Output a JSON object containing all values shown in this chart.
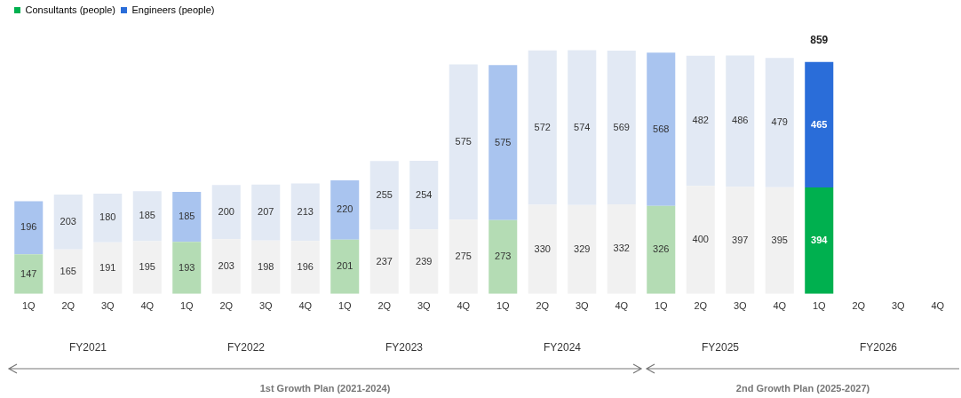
{
  "chart_data": {
    "type": "bar",
    "stacked": true,
    "data_labels": true,
    "legend": "top left",
    "grid": false,
    "categories": [
      "1Q",
      "2Q",
      "3Q",
      "4Q",
      "1Q",
      "2Q",
      "3Q",
      "4Q",
      "1Q",
      "2Q",
      "3Q",
      "4Q",
      "1Q",
      "2Q",
      "3Q",
      "4Q",
      "1Q",
      "2Q",
      "3Q",
      "4Q",
      "1Q",
      "2Q",
      "3Q",
      "4Q"
    ],
    "series": [
      {
        "name": "Consultants (people)",
        "color": "#00b04f",
        "values": [
          147,
          165,
          191,
          195,
          193,
          203,
          198,
          196,
          201,
          237,
          239,
          275,
          273,
          330,
          329,
          332,
          326,
          400,
          397,
          395,
          394,
          null,
          null,
          null
        ],
        "colors": [
          "#b4dcb4",
          "#f1f1f1",
          "#f1f1f1",
          "#f1f1f1",
          "#b4dcb4",
          "#f1f1f1",
          "#f1f1f1",
          "#f1f1f1",
          "#b4dcb4",
          "#f1f1f1",
          "#f1f1f1",
          "#f1f1f1",
          "#b4dcb4",
          "#f1f1f1",
          "#f1f1f1",
          "#f1f1f1",
          "#b4dcb4",
          "#f1f1f1",
          "#f1f1f1",
          "#f1f1f1",
          "#00b04f",
          "#f1f1f1",
          "#f1f1f1",
          "#f1f1f1"
        ]
      },
      {
        "name": "Engineers (people)",
        "color": "#2a6dd9",
        "values": [
          196,
          203,
          180,
          185,
          185,
          200,
          207,
          213,
          220,
          255,
          254,
          575,
          575,
          572,
          574,
          569,
          568,
          482,
          486,
          479,
          465,
          null,
          null,
          null
        ],
        "colors": [
          "#a9c4ef",
          "#e2e9f4",
          "#e2e9f4",
          "#e2e9f4",
          "#a9c4ef",
          "#e2e9f4",
          "#e2e9f4",
          "#e2e9f4",
          "#a9c4ef",
          "#e2e9f4",
          "#e2e9f4",
          "#e2e9f4",
          "#a9c4ef",
          "#e2e9f4",
          "#e2e9f4",
          "#e2e9f4",
          "#a9c4ef",
          "#e2e9f4",
          "#e2e9f4",
          "#e2e9f4",
          "#2a6dd9",
          "#e2e9f4",
          "#e2e9f4",
          "#e2e9f4"
        ]
      }
    ],
    "totals": [
      null,
      null,
      null,
      null,
      null,
      null,
      null,
      null,
      null,
      null,
      null,
      null,
      null,
      null,
      null,
      null,
      null,
      null,
      null,
      null,
      "859",
      null,
      null,
      null
    ],
    "annotations": [
      "FY2021",
      "FY2022",
      "FY2023",
      "FY2024",
      "FY2025",
      "FY2026",
      "1st Growth Plan (2021-2024)",
      "2nd Growth Plan (2025-2027)"
    ]
  }
}
